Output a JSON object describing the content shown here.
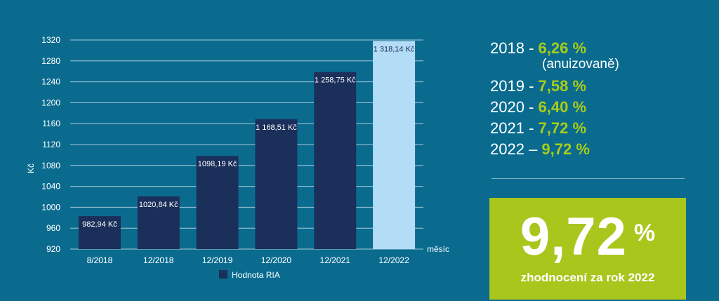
{
  "chart_data": {
    "type": "bar",
    "categories": [
      "8/2018",
      "12/2018",
      "12/2019",
      "12/2020",
      "12/2021",
      "12/2022"
    ],
    "values": [
      982.94,
      1020.84,
      1098.19,
      1168.51,
      1258.75,
      1318.14
    ],
    "value_labels": [
      "982,94 Kč",
      "1020,84 Kč",
      "1098,19 Kč",
      "1 168,51 Kč",
      "1 258,75 Kč",
      "1 318,14 Kč"
    ],
    "series": [
      {
        "name": "Hodnota RIA",
        "values": [
          982.94,
          1020.84,
          1098.19,
          1168.51,
          1258.75,
          1318.14
        ]
      }
    ],
    "ylabel": "Kč",
    "xlabel": "měsíc",
    "ylim": [
      920,
      1320
    ],
    "yticks": [
      920,
      960,
      1000,
      1040,
      1080,
      1120,
      1160,
      1200,
      1240,
      1280,
      1320
    ],
    "grid": true,
    "legend": "bottom-center",
    "colors": {
      "bar": "#1b2f5b",
      "highlight_bar": "#b3dcf6",
      "grid": "#a6c9d8",
      "background": "#0a6b8f"
    },
    "highlighted_category": "12/2022"
  },
  "returns": {
    "rows": [
      {
        "year": "2018",
        "sep": " - ",
        "pct": "6,26 %"
      },
      {
        "year": "2019",
        "sep": " - ",
        "pct": "7,58 %"
      },
      {
        "year": "2020",
        "sep": " - ",
        "pct": "6,40 %"
      },
      {
        "year": "2021",
        "sep": " - ",
        "pct": "7,72 %"
      },
      {
        "year": "2022",
        "sep": " – ",
        "pct": "9,72 %"
      }
    ],
    "note": "(anuizovaně)",
    "accent_color": "#a9cc18"
  },
  "highlight": {
    "value": "9,72",
    "unit": "%",
    "caption": "zhodnocení za rok 2022",
    "background": "#a9c61d"
  }
}
